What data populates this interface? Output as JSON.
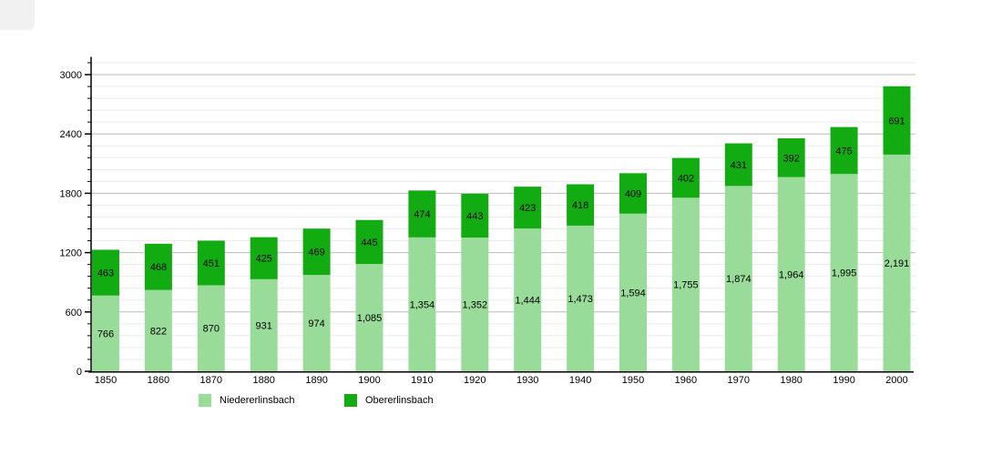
{
  "chart_data": {
    "type": "bar",
    "stacked": true,
    "title": "",
    "xlabel": "",
    "ylabel": "",
    "categories": [
      "1850",
      "1860",
      "1870",
      "1880",
      "1890",
      "1900",
      "1910",
      "1920",
      "1930",
      "1940",
      "1950",
      "1960",
      "1970",
      "1980",
      "1990",
      "2000"
    ],
    "series": [
      {
        "name": "Niedererlinsbach",
        "color": "#99DC99",
        "values": [
          766,
          822,
          870,
          931,
          974,
          1085,
          1354,
          1352,
          1444,
          1473,
          1594,
          1755,
          1874,
          1964,
          1995,
          2191
        ]
      },
      {
        "name": "Obererlinsbach",
        "color": "#12AC12",
        "values": [
          463,
          468,
          451,
          425,
          469,
          445,
          474,
          443,
          423,
          418,
          409,
          402,
          431,
          392,
          475,
          691
        ]
      }
    ],
    "ylim": [
      0,
      3180
    ],
    "y_major_step": 600,
    "y_minor_step": 120,
    "y_tick_labels": [
      "0",
      "600",
      "1200",
      "1800",
      "2400",
      "3000"
    ],
    "grid": true,
    "legend_position": "bottom",
    "colors": {
      "axis": "#000000",
      "grid_major": "#bbbbbb",
      "grid_minor": "#ebebeb",
      "value_label": "#000000",
      "tick_label": "#000000"
    }
  }
}
